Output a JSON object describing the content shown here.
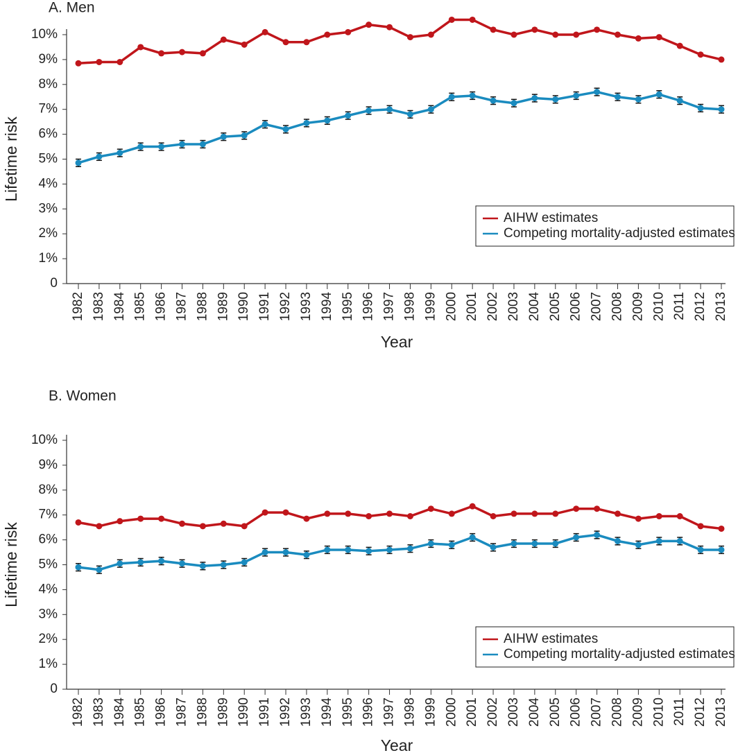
{
  "chart_data": [
    {
      "type": "line",
      "title": "A. Men",
      "x_label": "Year",
      "y_label": "Lifetime risk",
      "categories": [
        "1982",
        "1983",
        "1984",
        "1985",
        "1986",
        "1987",
        "1988",
        "1989",
        "1990",
        "1991",
        "1992",
        "1993",
        "1994",
        "1995",
        "1996",
        "1997",
        "1998",
        "1999",
        "2000",
        "2001",
        "2002",
        "2003",
        "2004",
        "2005",
        "2006",
        "2007",
        "2008",
        "2009",
        "2010",
        "2011",
        "2012",
        "2013"
      ],
      "series": [
        {
          "name": "AIHW estimates",
          "color": "#c0161b",
          "values": [
            8.85,
            8.9,
            8.9,
            9.5,
            9.25,
            9.3,
            9.25,
            9.8,
            9.6,
            10.1,
            9.7,
            9.7,
            10.0,
            10.1,
            10.4,
            10.3,
            9.9,
            10.0,
            10.6,
            10.6,
            10.2,
            10.0,
            10.2,
            10.0,
            10.0,
            10.2,
            10.0,
            9.85,
            9.9,
            9.55,
            9.2,
            9.0
          ]
        },
        {
          "name": "Competing mortality-adjusted estimates",
          "color": "#1a8bbf",
          "values": [
            4.85,
            5.1,
            5.25,
            5.5,
            5.5,
            5.6,
            5.6,
            5.9,
            5.95,
            6.4,
            6.2,
            6.45,
            6.55,
            6.75,
            6.95,
            7.0,
            6.8,
            7.0,
            7.5,
            7.55,
            7.35,
            7.25,
            7.45,
            7.4,
            7.55,
            7.7,
            7.5,
            7.4,
            7.6,
            7.35,
            7.05,
            7.0
          ],
          "errors": [
            0.15,
            0.15,
            0.15,
            0.15,
            0.15,
            0.15,
            0.15,
            0.15,
            0.15,
            0.15,
            0.15,
            0.15,
            0.15,
            0.15,
            0.15,
            0.15,
            0.15,
            0.15,
            0.15,
            0.15,
            0.15,
            0.15,
            0.15,
            0.15,
            0.15,
            0.15,
            0.15,
            0.15,
            0.15,
            0.15,
            0.15,
            0.15
          ]
        }
      ],
      "ylim": [
        0,
        10
      ],
      "yticks": [
        0,
        {
          "value": 1,
          "label": "1%"
        },
        {
          "value": 2,
          "label": "2%"
        },
        {
          "value": 3,
          "label": "3%"
        },
        {
          "value": 4,
          "label": "4%"
        },
        {
          "value": 5,
          "label": "5%"
        },
        {
          "value": 6,
          "label": "6%"
        },
        {
          "value": 7,
          "label": "7%"
        },
        {
          "value": 8,
          "label": "8%"
        },
        {
          "value": 9,
          "label": "9%"
        },
        {
          "value": 10,
          "label": "10%"
        }
      ],
      "legend": "lower right",
      "grid": false
    },
    {
      "type": "line",
      "title": "B. Women",
      "x_label": "Year",
      "y_label": "Lifetime risk",
      "categories": [
        "1982",
        "1983",
        "1984",
        "1985",
        "1986",
        "1987",
        "1988",
        "1989",
        "1990",
        "1991",
        "1992",
        "1993",
        "1994",
        "1995",
        "1996",
        "1997",
        "1998",
        "1999",
        "2000",
        "2001",
        "2002",
        "2003",
        "2004",
        "2005",
        "2006",
        "2007",
        "2008",
        "2009",
        "2010",
        "2011",
        "2012",
        "2013"
      ],
      "series": [
        {
          "name": "AIHW estimates",
          "color": "#c0161b",
          "values": [
            6.7,
            6.55,
            6.75,
            6.85,
            6.85,
            6.65,
            6.55,
            6.65,
            6.55,
            7.1,
            7.1,
            6.85,
            7.05,
            7.05,
            6.95,
            7.05,
            6.95,
            7.25,
            7.05,
            7.35,
            6.95,
            7.05,
            7.05,
            7.05,
            7.25,
            7.25,
            7.05,
            6.85,
            6.95,
            6.95,
            6.55,
            6.45
          ]
        },
        {
          "name": "Competing mortality-adjusted estimates",
          "color": "#1a8bbf",
          "values": [
            4.9,
            4.8,
            5.05,
            5.1,
            5.15,
            5.05,
            4.95,
            5.0,
            5.1,
            5.5,
            5.5,
            5.4,
            5.6,
            5.6,
            5.55,
            5.6,
            5.65,
            5.85,
            5.8,
            6.1,
            5.7,
            5.85,
            5.85,
            5.85,
            6.1,
            6.2,
            5.95,
            5.8,
            5.95,
            5.95,
            5.6,
            5.6
          ],
          "errors": [
            0.15,
            0.15,
            0.15,
            0.15,
            0.15,
            0.15,
            0.15,
            0.15,
            0.15,
            0.15,
            0.15,
            0.15,
            0.15,
            0.15,
            0.15,
            0.15,
            0.15,
            0.15,
            0.15,
            0.15,
            0.15,
            0.15,
            0.15,
            0.15,
            0.15,
            0.15,
            0.15,
            0.15,
            0.15,
            0.15,
            0.15,
            0.15
          ]
        }
      ],
      "ylim": [
        0,
        10
      ],
      "yticks": [
        0,
        {
          "value": 1,
          "label": "1%"
        },
        {
          "value": 2,
          "label": "2%"
        },
        {
          "value": 3,
          "label": "3%"
        },
        {
          "value": 4,
          "label": "4%"
        },
        {
          "value": 5,
          "label": "5%"
        },
        {
          "value": 6,
          "label": "6%"
        },
        {
          "value": 7,
          "label": "7%"
        },
        {
          "value": 8,
          "label": "8%"
        },
        {
          "value": 9,
          "label": "9%"
        },
        {
          "value": 10,
          "label": "10%"
        }
      ],
      "legend": "lower right",
      "grid": false
    }
  ]
}
